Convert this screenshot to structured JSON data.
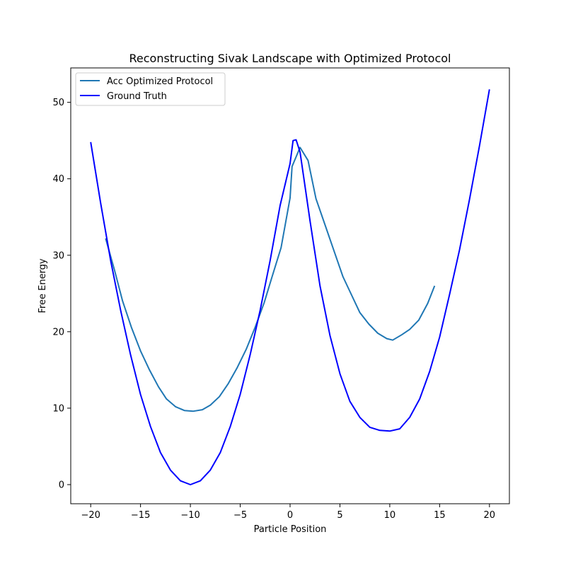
{
  "chart_data": {
    "type": "line",
    "title": "Reconstructing Sivak Landscape with Optimized Protocol",
    "xlabel": "Particle Position",
    "ylabel": "Free Energy",
    "xlim": [
      -22,
      22
    ],
    "ylim": [
      -2.5,
      54.5
    ],
    "xticks": [
      -20,
      -15,
      -10,
      -5,
      0,
      5,
      10,
      15,
      20
    ],
    "yticks": [
      0,
      10,
      20,
      30,
      40,
      50
    ],
    "grid": false,
    "legend_position": "top-left",
    "series": [
      {
        "name": "Acc Optimized Protocol",
        "color": "#1f77b4",
        "x": [
          -18.5,
          -17.6,
          -16.8,
          -15.9,
          -15.0,
          -14.1,
          -13.2,
          -12.4,
          -11.5,
          -10.6,
          -9.7,
          -8.8,
          -8.0,
          -7.1,
          -6.2,
          -5.3,
          -4.4,
          -3.5,
          -2.6,
          -1.8,
          -0.9,
          0.0,
          0.2,
          1.0,
          1.8,
          2.6,
          3.5,
          4.4,
          5.3,
          6.2,
          7.0,
          7.9,
          8.8,
          9.7,
          10.3,
          11.2,
          12.0,
          12.9,
          13.8,
          14.5
        ],
        "y": [
          32.2,
          28.0,
          24.0,
          20.5,
          17.5,
          15.0,
          12.8,
          11.2,
          10.2,
          9.7,
          9.6,
          9.8,
          10.4,
          11.5,
          13.2,
          15.3,
          17.7,
          20.6,
          23.8,
          27.2,
          31.0,
          37.5,
          41.6,
          44.1,
          42.4,
          37.4,
          34.0,
          30.6,
          27.2,
          24.7,
          22.5,
          21.0,
          19.8,
          19.1,
          18.9,
          19.6,
          20.3,
          21.5,
          23.7,
          26.0
        ]
      },
      {
        "name": "Ground Truth",
        "color": "#0000ff",
        "x": [
          -20,
          -19,
          -18,
          -17,
          -16,
          -15,
          -14,
          -13,
          -12,
          -11,
          -10,
          -9,
          -8,
          -7,
          -6,
          -5,
          -4,
          -3,
          -2,
          -1,
          0,
          0.3,
          0.6,
          1,
          2,
          3,
          4,
          5,
          6,
          7,
          8,
          9,
          10,
          11,
          12,
          13,
          14,
          15,
          16,
          17,
          18,
          19,
          20
        ],
        "y": [
          44.8,
          36.8,
          29.3,
          22.8,
          17.0,
          11.8,
          7.6,
          4.2,
          1.9,
          0.5,
          0.0,
          0.5,
          1.9,
          4.2,
          7.6,
          11.8,
          17.0,
          22.8,
          29.3,
          36.5,
          42.0,
          45.0,
          45.1,
          43.5,
          34.5,
          26.0,
          19.5,
          14.5,
          10.9,
          8.8,
          7.5,
          7.1,
          7.0,
          7.3,
          8.8,
          11.2,
          14.8,
          19.3,
          24.9,
          30.7,
          37.3,
          44.3,
          51.7
        ]
      }
    ]
  }
}
